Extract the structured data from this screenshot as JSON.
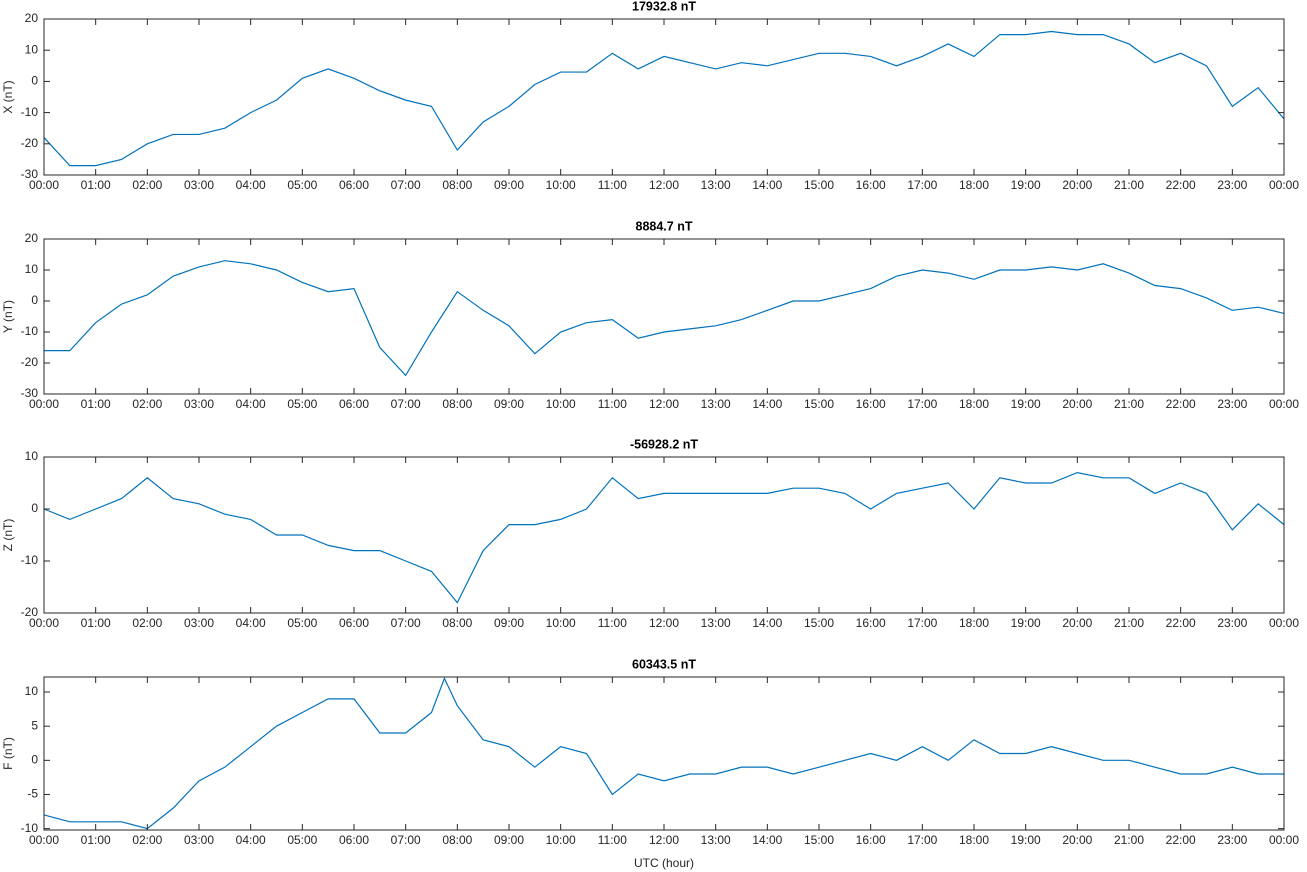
{
  "chart_data": [
    {
      "type": "line",
      "title": "17932.8 nT",
      "y_label": "X (nT)",
      "x": [
        0,
        0.5,
        1,
        1.5,
        2,
        2.5,
        3,
        3.5,
        4,
        4.5,
        5,
        5.5,
        6,
        6.5,
        7,
        7.5,
        8,
        8.5,
        9,
        9.5,
        10,
        10.5,
        11,
        11.5,
        12,
        12.5,
        13,
        13.5,
        14,
        14.5,
        15,
        15.5,
        16,
        16.5,
        17,
        17.5,
        18,
        18.5,
        19,
        19.5,
        20,
        20.5,
        21,
        21.5,
        22,
        22.5,
        23,
        23.5,
        24
      ],
      "series": [
        {
          "name": "X",
          "color": "#0072bd",
          "values": [
            -18,
            -27,
            -27,
            -25,
            -20,
            -17,
            -17,
            -15,
            -10,
            -6,
            1,
            4,
            1,
            -3,
            -6,
            -8,
            -22,
            -13,
            -8,
            -1,
            3,
            3,
            9,
            4,
            8,
            6,
            4,
            6,
            5,
            7,
            9,
            9,
            8,
            5,
            8,
            12,
            8,
            15,
            15,
            16,
            15,
            15,
            12,
            6,
            9,
            5,
            -8,
            -2,
            -12
          ]
        }
      ],
      "xlim": [
        0,
        24
      ],
      "ylim": [
        -30,
        20
      ],
      "yticks": [
        -30,
        -20,
        -10,
        0,
        10,
        20
      ],
      "xticks": [
        {
          "value": 0,
          "label": "00:00"
        },
        {
          "value": 1,
          "label": "01:00"
        },
        {
          "value": 2,
          "label": "02:00"
        },
        {
          "value": 3,
          "label": "03:00"
        },
        {
          "value": 4,
          "label": "04:00"
        },
        {
          "value": 5,
          "label": "05:00"
        },
        {
          "value": 6,
          "label": "06:00"
        },
        {
          "value": 7,
          "label": "07:00"
        },
        {
          "value": 8,
          "label": "08:00"
        },
        {
          "value": 9,
          "label": "09:00"
        },
        {
          "value": 10,
          "label": "10:00"
        },
        {
          "value": 11,
          "label": "11:00"
        },
        {
          "value": 12,
          "label": "12:00"
        },
        {
          "value": 13,
          "label": "13:00"
        },
        {
          "value": 14,
          "label": "14:00"
        },
        {
          "value": 15,
          "label": "15:00"
        },
        {
          "value": 16,
          "label": "16:00"
        },
        {
          "value": 17,
          "label": "17:00"
        },
        {
          "value": 18,
          "label": "18:00"
        },
        {
          "value": 19,
          "label": "19:00"
        },
        {
          "value": 20,
          "label": "20:00"
        },
        {
          "value": 21,
          "label": "21:00"
        },
        {
          "value": 22,
          "label": "22:00"
        },
        {
          "value": 23,
          "label": "23:00"
        },
        {
          "value": 24,
          "label": "00:00"
        }
      ]
    },
    {
      "type": "line",
      "title": "8884.7 nT",
      "y_label": "Y (nT)",
      "x": [
        0,
        0.5,
        1,
        1.5,
        2,
        2.5,
        3,
        3.5,
        4,
        4.5,
        5,
        5.5,
        6,
        6.5,
        7,
        7.5,
        8,
        8.5,
        9,
        9.5,
        10,
        10.5,
        11,
        11.5,
        12,
        12.5,
        13,
        13.5,
        14,
        14.5,
        15,
        15.5,
        16,
        16.5,
        17,
        17.5,
        18,
        18.5,
        19,
        19.5,
        20,
        20.5,
        21,
        21.5,
        22,
        22.5,
        23,
        23.5,
        24
      ],
      "series": [
        {
          "name": "Y",
          "color": "#0072bd",
          "values": [
            -16,
            -16,
            -7,
            -1,
            2,
            8,
            11,
            13,
            12,
            10,
            6,
            3,
            4,
            -15,
            -24,
            -10,
            3,
            -3,
            -8,
            -17,
            -10,
            -7,
            -6,
            -12,
            -10,
            -9,
            -8,
            -6,
            -3,
            0,
            0,
            2,
            4,
            8,
            10,
            9,
            7,
            10,
            10,
            11,
            10,
            12,
            9,
            5,
            4,
            1,
            -3,
            -2,
            -4
          ]
        }
      ],
      "xlim": [
        0,
        24
      ],
      "ylim": [
        -30,
        20
      ],
      "yticks": [
        -30,
        -20,
        -10,
        0,
        10,
        20
      ],
      "xticks": [
        {
          "value": 0,
          "label": "00:00"
        },
        {
          "value": 1,
          "label": "01:00"
        },
        {
          "value": 2,
          "label": "02:00"
        },
        {
          "value": 3,
          "label": "03:00"
        },
        {
          "value": 4,
          "label": "04:00"
        },
        {
          "value": 5,
          "label": "05:00"
        },
        {
          "value": 6,
          "label": "06:00"
        },
        {
          "value": 7,
          "label": "07:00"
        },
        {
          "value": 8,
          "label": "08:00"
        },
        {
          "value": 9,
          "label": "09:00"
        },
        {
          "value": 10,
          "label": "10:00"
        },
        {
          "value": 11,
          "label": "11:00"
        },
        {
          "value": 12,
          "label": "12:00"
        },
        {
          "value": 13,
          "label": "13:00"
        },
        {
          "value": 14,
          "label": "14:00"
        },
        {
          "value": 15,
          "label": "15:00"
        },
        {
          "value": 16,
          "label": "16:00"
        },
        {
          "value": 17,
          "label": "17:00"
        },
        {
          "value": 18,
          "label": "18:00"
        },
        {
          "value": 19,
          "label": "19:00"
        },
        {
          "value": 20,
          "label": "20:00"
        },
        {
          "value": 21,
          "label": "21:00"
        },
        {
          "value": 22,
          "label": "22:00"
        },
        {
          "value": 23,
          "label": "23:00"
        },
        {
          "value": 24,
          "label": "00:00"
        }
      ]
    },
    {
      "type": "line",
      "title": "-56928.2 nT",
      "y_label": "Z (nT)",
      "x": [
        0,
        0.5,
        1,
        1.5,
        2,
        2.5,
        3,
        3.5,
        4,
        4.5,
        5,
        5.5,
        6,
        6.5,
        7,
        7.5,
        8,
        8.5,
        9,
        9.5,
        10,
        10.5,
        11,
        11.5,
        12,
        12.5,
        13,
        13.5,
        14,
        14.5,
        15,
        15.5,
        16,
        16.5,
        17,
        17.5,
        18,
        18.5,
        19,
        19.5,
        20,
        20.5,
        21,
        21.5,
        22,
        22.5,
        23,
        23.5,
        24
      ],
      "series": [
        {
          "name": "Z",
          "color": "#0072bd",
          "values": [
            0,
            -2,
            0,
            2,
            6,
            2,
            1,
            -1,
            -2,
            -5,
            -5,
            -7,
            -8,
            -8,
            -10,
            -12,
            -18,
            -8,
            -3,
            -3,
            -2,
            0,
            6,
            2,
            3,
            3,
            3,
            3,
            3,
            4,
            4,
            3,
            0,
            3,
            4,
            5,
            0,
            6,
            5,
            5,
            7,
            6,
            6,
            3,
            5,
            3,
            -4,
            1,
            -3
          ]
        }
      ],
      "xlim": [
        0,
        24
      ],
      "ylim": [
        -20,
        10
      ],
      "yticks": [
        -20,
        -10,
        0,
        10
      ],
      "xticks": [
        {
          "value": 0,
          "label": "00:00"
        },
        {
          "value": 1,
          "label": "01:00"
        },
        {
          "value": 2,
          "label": "02:00"
        },
        {
          "value": 3,
          "label": "03:00"
        },
        {
          "value": 4,
          "label": "04:00"
        },
        {
          "value": 5,
          "label": "05:00"
        },
        {
          "value": 6,
          "label": "06:00"
        },
        {
          "value": 7,
          "label": "07:00"
        },
        {
          "value": 8,
          "label": "08:00"
        },
        {
          "value": 9,
          "label": "09:00"
        },
        {
          "value": 10,
          "label": "10:00"
        },
        {
          "value": 11,
          "label": "11:00"
        },
        {
          "value": 12,
          "label": "12:00"
        },
        {
          "value": 13,
          "label": "13:00"
        },
        {
          "value": 14,
          "label": "14:00"
        },
        {
          "value": 15,
          "label": "15:00"
        },
        {
          "value": 16,
          "label": "16:00"
        },
        {
          "value": 17,
          "label": "17:00"
        },
        {
          "value": 18,
          "label": "18:00"
        },
        {
          "value": 19,
          "label": "19:00"
        },
        {
          "value": 20,
          "label": "20:00"
        },
        {
          "value": 21,
          "label": "21:00"
        },
        {
          "value": 22,
          "label": "22:00"
        },
        {
          "value": 23,
          "label": "23:00"
        },
        {
          "value": 24,
          "label": "00:00"
        }
      ]
    },
    {
      "type": "line",
      "title": "60343.5 nT",
      "y_label": "F (nT)",
      "x_label": "UTC (hour)",
      "x": [
        0,
        0.5,
        1,
        1.5,
        2,
        2.5,
        3,
        3.5,
        4,
        4.5,
        5,
        5.5,
        6,
        6.5,
        7,
        7.5,
        7.75,
        8,
        8.5,
        9,
        9.5,
        10,
        10.5,
        11,
        11.5,
        12,
        12.5,
        13,
        13.5,
        14,
        14.5,
        15,
        15.5,
        16,
        16.5,
        17,
        17.5,
        18,
        18.5,
        19,
        19.5,
        20,
        20.5,
        21,
        21.5,
        22,
        22.5,
        23,
        23.5,
        24
      ],
      "series": [
        {
          "name": "F",
          "color": "#0072bd",
          "values": [
            -8,
            -9,
            -9,
            -9,
            -10,
            -7,
            -3,
            -1,
            2,
            5,
            7,
            9,
            9,
            4,
            4,
            7,
            12,
            8,
            3,
            2,
            -1,
            2,
            1,
            -5,
            -2,
            -3,
            -2,
            -2,
            -1,
            -1,
            -2,
            -1,
            0,
            1,
            0,
            2,
            0,
            3,
            1,
            1,
            2,
            1,
            0,
            0,
            -1,
            -2,
            -2,
            -1,
            -2,
            -2
          ]
        }
      ],
      "xlim": [
        0,
        24
      ],
      "ylim": [
        -10.2,
        12.2
      ],
      "yticks": [
        -10,
        -5,
        0,
        5,
        10
      ],
      "xticks": [
        {
          "value": 0,
          "label": "00:00"
        },
        {
          "value": 1,
          "label": "01:00"
        },
        {
          "value": 2,
          "label": "02:00"
        },
        {
          "value": 3,
          "label": "03:00"
        },
        {
          "value": 4,
          "label": "04:00"
        },
        {
          "value": 5,
          "label": "05:00"
        },
        {
          "value": 6,
          "label": "06:00"
        },
        {
          "value": 7,
          "label": "07:00"
        },
        {
          "value": 8,
          "label": "08:00"
        },
        {
          "value": 9,
          "label": "09:00"
        },
        {
          "value": 10,
          "label": "10:00"
        },
        {
          "value": 11,
          "label": "11:00"
        },
        {
          "value": 12,
          "label": "12:00"
        },
        {
          "value": 13,
          "label": "13:00"
        },
        {
          "value": 14,
          "label": "14:00"
        },
        {
          "value": 15,
          "label": "15:00"
        },
        {
          "value": 16,
          "label": "16:00"
        },
        {
          "value": 17,
          "label": "17:00"
        },
        {
          "value": 18,
          "label": "18:00"
        },
        {
          "value": 19,
          "label": "19:00"
        },
        {
          "value": 20,
          "label": "20:00"
        },
        {
          "value": 21,
          "label": "21:00"
        },
        {
          "value": 22,
          "label": "22:00"
        },
        {
          "value": 23,
          "label": "23:00"
        },
        {
          "value": 24,
          "label": "00:00"
        }
      ]
    }
  ]
}
